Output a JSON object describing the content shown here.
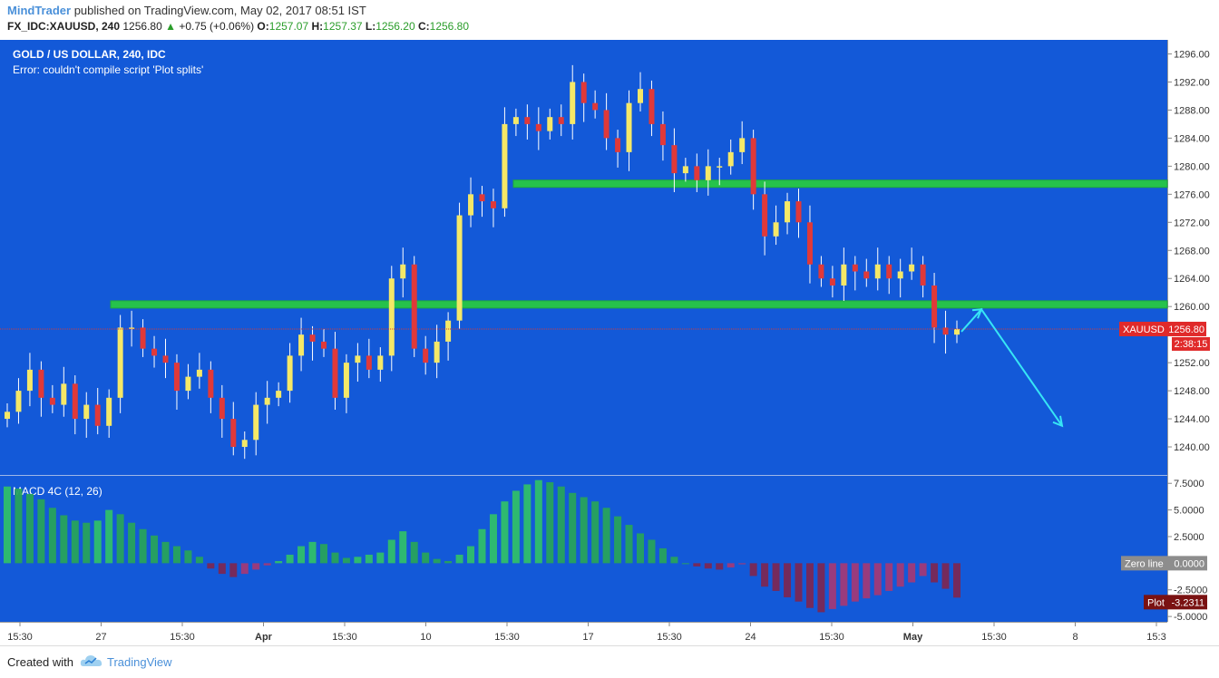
{
  "header": {
    "author": "MindTrader",
    "published_text": "published on TradingView.com, May 02, 2017 08:51 IST",
    "symbol": "FX_IDC:XAUUSD, 240",
    "last": "1256.80",
    "change": "+0.75 (+0.06%)",
    "o_label": "O:",
    "o_value": "1257.07",
    "h_label": "H:",
    "h_value": "1257.37",
    "l_label": "L:",
    "l_value": "1256.20",
    "c_label": "C:",
    "c_value": "1256.80"
  },
  "chart_data": {
    "type": "candlestick",
    "title": "GOLD / US DOLLAR, 240, IDC",
    "error_text": "Error: couldn't compile script 'Plot splits'",
    "price_ticks": [
      "1296.00",
      "1292.00",
      "1288.00",
      "1284.00",
      "1280.00",
      "1276.00",
      "1272.00",
      "1268.00",
      "1264.00",
      "1260.00",
      "1252.00",
      "1248.00",
      "1244.00",
      "1240.00"
    ],
    "ylim": [
      1236,
      1298
    ],
    "last_price": 1256.8,
    "price_badge": "XAUUSD · 1256.80",
    "countdown": "2:38:15",
    "resistance_levels": [
      1277.5,
      1260.3
    ],
    "x_ticks": [
      "15:30",
      "27",
      "15:30",
      "Apr",
      "15:30",
      "10",
      "15:30",
      "17",
      "15:30",
      "24",
      "15:30",
      "May",
      "15:30",
      "8",
      "15:3"
    ],
    "closes": [
      1245,
      1248,
      1251,
      1247,
      1246,
      1249,
      1244,
      1246,
      1243,
      1247,
      1257,
      1257,
      1254,
      1253,
      1252,
      1248,
      1250,
      1251,
      1247,
      1244,
      1240,
      1241,
      1246,
      1247,
      1248,
      1253,
      1256,
      1255,
      1254,
      1247,
      1252,
      1253,
      1251,
      1253,
      1264,
      1266,
      1254,
      1252,
      1255,
      1258,
      1273,
      1276,
      1275,
      1274,
      1286,
      1287,
      1286,
      1285,
      1287,
      1286,
      1292,
      1289,
      1288,
      1284,
      1282,
      1289,
      1291,
      1286,
      1283,
      1279,
      1280,
      1278,
      1280,
      1280,
      1282,
      1284,
      1276,
      1270,
      1272,
      1275,
      1272,
      1266,
      1264,
      1263,
      1266,
      1265,
      1264,
      1266,
      1264,
      1265,
      1266,
      1263,
      1257,
      1256,
      1256.8
    ],
    "macd": {
      "label": "MACD 4C (12, 26)",
      "ticks": [
        "7.5000",
        "5.0000",
        "2.5000",
        "-2.5000",
        "-5.0000"
      ],
      "ylim": [
        -5.5,
        8.2
      ],
      "zero_badge": "Zero line · 0.0000",
      "plot_badge": "Plot · -3.2311",
      "histogram": [
        7.2,
        7.0,
        6.5,
        6.0,
        5.2,
        4.5,
        4.0,
        3.8,
        4.0,
        5.0,
        4.6,
        3.8,
        3.2,
        2.6,
        2.0,
        1.6,
        1.2,
        0.6,
        -0.5,
        -1.0,
        -1.3,
        -1.0,
        -0.6,
        -0.2,
        0.2,
        0.8,
        1.6,
        2.0,
        1.8,
        1.0,
        0.5,
        0.6,
        0.8,
        1.0,
        2.2,
        3.0,
        2.0,
        1.0,
        0.4,
        0.2,
        0.8,
        1.6,
        3.2,
        4.6,
        5.8,
        6.8,
        7.4,
        7.8,
        7.6,
        7.2,
        6.6,
        6.2,
        5.8,
        5.2,
        4.4,
        3.6,
        2.8,
        2.2,
        1.4,
        0.6,
        0,
        -0.3,
        -0.5,
        -0.6,
        -0.4,
        -0.1,
        -1.2,
        -2.2,
        -2.6,
        -3.2,
        -3.6,
        -4.2,
        -4.6,
        -4.3,
        -4.0,
        -3.6,
        -3.3,
        -3.0,
        -2.6,
        -2.2,
        -1.8,
        -1.2,
        -1.8,
        -2.4,
        -3.23
      ]
    }
  },
  "colors": {
    "chart_bg": "#1359d8",
    "axis_bg": "#ffffff",
    "up_candle": "#f5e867",
    "down_candle": "#e03939",
    "wick": "#ffffff",
    "support_band": "#26c24b",
    "arrow": "#37e5f5",
    "price_line": "#d33a3a",
    "macd_up": "#27a35c",
    "macd_down": "#7a2855"
  },
  "footer": {
    "created_with": "Created with",
    "brand": "TradingView"
  }
}
